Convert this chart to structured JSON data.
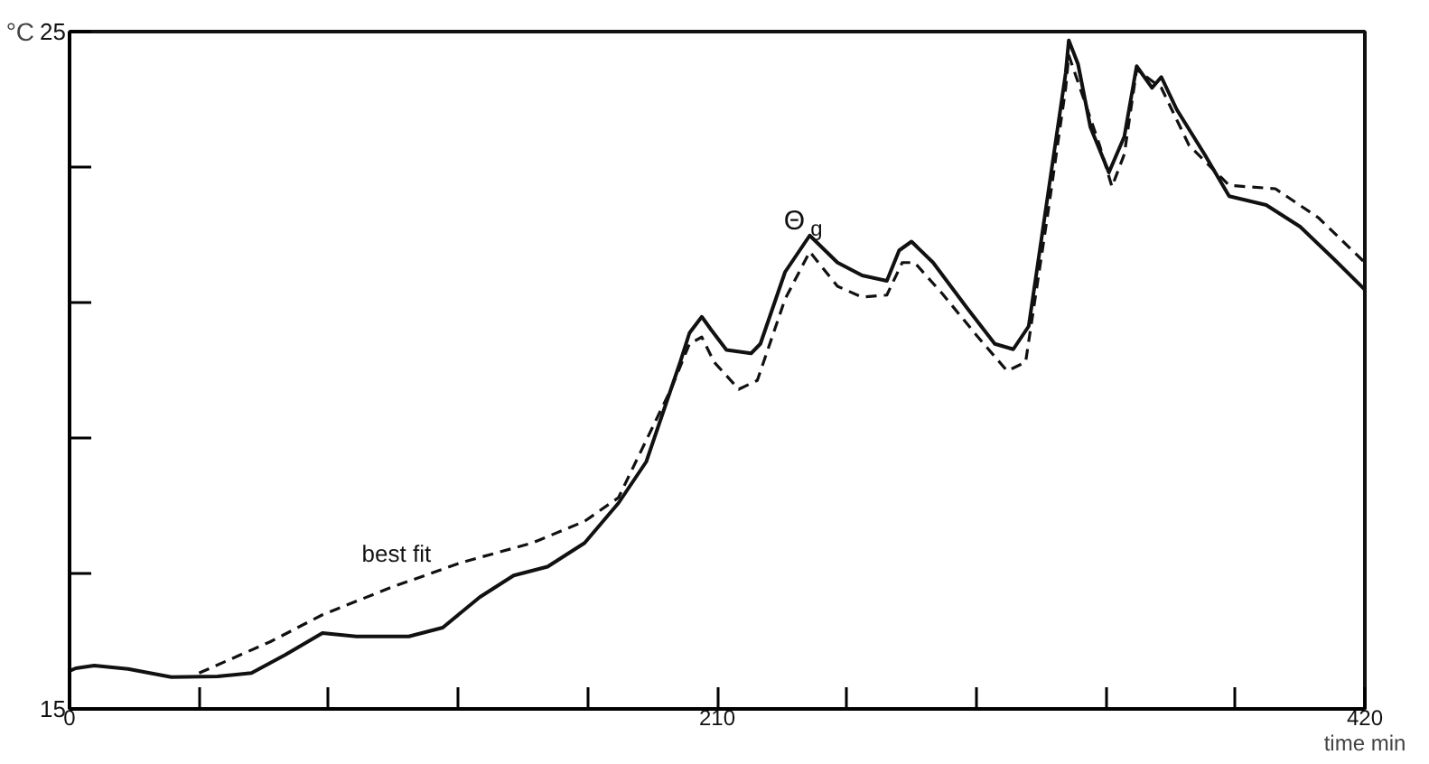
{
  "chart_data": {
    "type": "line",
    "xlabel": "time min",
    "ylabel": "°C",
    "xlim": [
      0,
      420
    ],
    "ylim": [
      15,
      25
    ],
    "xticks": [
      0,
      {
        "value": 42,
        "label": null
      },
      {
        "value": 84,
        "label": null
      },
      {
        "value": 126,
        "label": null
      },
      {
        "value": 168,
        "label": null
      },
      210,
      {
        "value": 252,
        "label": null
      },
      {
        "value": 294,
        "label": null
      },
      {
        "value": 336,
        "label": null
      },
      {
        "value": 378,
        "label": null
      },
      420
    ],
    "yticks": [
      15,
      {
        "value": 17,
        "label": null
      },
      {
        "value": 19,
        "label": null
      },
      {
        "value": 21,
        "label": null
      },
      {
        "value": 23,
        "label": null
      },
      25
    ],
    "grid": false,
    "marker": "none",
    "series": [
      {
        "color": "#111111",
        "line_style": "solid",
        "x": [
          0,
          2,
          8,
          19,
          33,
          48,
          59,
          70,
          82,
          93,
          110,
          121,
          133,
          144,
          155,
          167,
          178,
          187,
          192,
          198,
          201,
          205,
          208,
          213,
          221,
          224,
          232,
          240,
          249,
          257,
          265,
          269,
          273,
          280,
          291,
          300,
          306,
          311,
          317,
          323,
          324,
          327,
          331,
          337,
          342,
          346,
          351,
          354,
          359,
          368,
          376,
          388,
          399,
          410,
          420
        ],
        "values": [
          15.56,
          15.6,
          15.64,
          15.59,
          15.47,
          15.48,
          15.53,
          15.8,
          16.12,
          16.07,
          16.07,
          16.2,
          16.65,
          16.97,
          17.1,
          17.45,
          18.04,
          18.65,
          19.32,
          20.12,
          20.55,
          20.79,
          20.6,
          20.3,
          20.25,
          20.39,
          21.45,
          21.99,
          21.59,
          21.4,
          21.32,
          21.77,
          21.9,
          21.59,
          20.92,
          20.39,
          20.31,
          20.65,
          22.52,
          24.39,
          24.87,
          24.52,
          23.59,
          22.92,
          23.45,
          24.49,
          24.17,
          24.33,
          23.85,
          23.19,
          22.57,
          22.44,
          22.12,
          21.64,
          21.19
        ]
      },
      {
        "color": "#111111",
        "line_style": "dashed",
        "x": [
          42,
          65,
          82,
          104,
          127,
          150,
          167,
          178,
          195,
          201,
          205,
          209,
          217,
          223,
          232,
          240,
          249,
          257,
          265,
          270,
          274,
          283,
          294,
          304,
          310,
          317,
          323,
          324,
          328,
          334,
          338,
          342,
          346,
          354,
          363,
          376,
          391,
          405,
          420
        ],
        "values": [
          15.53,
          15.99,
          16.39,
          16.79,
          17.16,
          17.45,
          17.77,
          18.12,
          19.72,
          20.39,
          20.49,
          20.12,
          19.72,
          19.85,
          21.05,
          21.75,
          21.24,
          21.08,
          21.11,
          21.59,
          21.59,
          21.13,
          20.52,
          19.99,
          20.12,
          22.25,
          24.17,
          24.65,
          24.12,
          23.32,
          22.71,
          23.19,
          24.44,
          24.17,
          23.32,
          22.73,
          22.68,
          22.25,
          21.59
        ]
      }
    ],
    "annotations": [
      "best fit",
      "Θ$_{g}$"
    ]
  }
}
